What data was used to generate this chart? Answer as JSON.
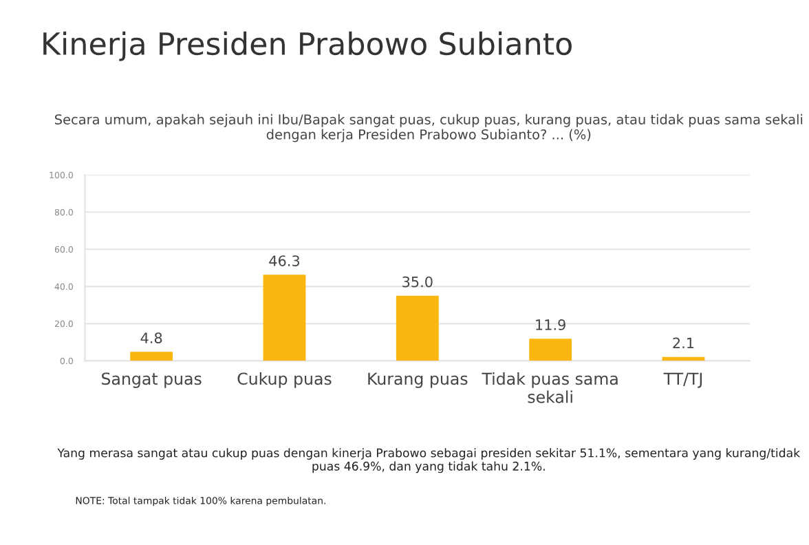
{
  "chart_data": {
    "type": "bar",
    "title": "Kinerja Presiden Prabowo Subianto",
    "subtitle": "Secara umum, apakah sejauh ini Ibu/Bapak sangat puas, cukup puas, kurang puas, atau tidak puas sama sekali dengan kerja Presiden Prabowo Subianto? ... (%)",
    "categories": [
      "Sangat puas",
      "Cukup puas",
      "Kurang puas",
      "Tidak puas sama sekali",
      "TT/TJ"
    ],
    "values": [
      4.8,
      46.3,
      35.0,
      11.9,
      2.1
    ],
    "color": "#fbb710",
    "ylim": [
      0,
      100
    ],
    "yticks": [
      {
        "value": 0,
        "label": "0.0"
      },
      {
        "value": 20,
        "label": "20.0"
      },
      {
        "value": 40,
        "label": "40.0"
      },
      {
        "value": 60,
        "label": "60.0"
      },
      {
        "value": 80,
        "label": "80.0"
      },
      {
        "value": 100,
        "label": "100.0"
      }
    ],
    "grid": "y",
    "value_labels": [
      "4.8",
      "46.3",
      "35.0",
      "11.9",
      "2.1"
    ],
    "annotations": [
      "Yang merasa sangat atau cukup puas dengan kinerja Prabowo sebagai presiden sekitar 51.1%, sementara yang kurang/tidak puas 46.9%, dan yang tidak tahu 2.1%.",
      "NOTE: Total tampak tidak 100% karena pembulatan."
    ]
  }
}
